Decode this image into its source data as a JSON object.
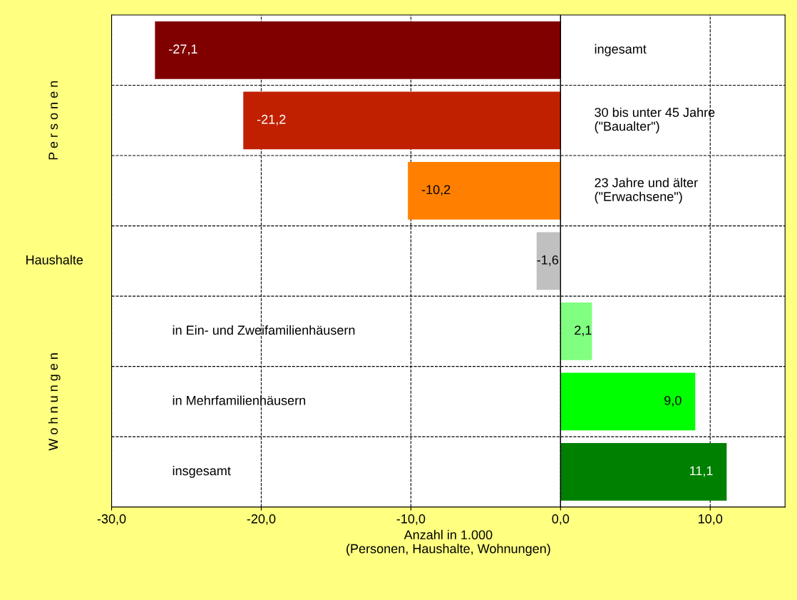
{
  "chart_data": {
    "type": "bar",
    "orientation": "horizontal",
    "categories": [
      "ingesamt",
      "30 bis unter 45 Jahre\n(\"Baualter\")",
      "23 Jahre und älter\n(\"Erwachsene\")",
      null,
      "in Ein- und Zweifamilienhäusern",
      "in Mehrfamilienhäusern",
      "insgesamt"
    ],
    "values": [
      -27.1,
      -21.2,
      -10.2,
      -1.6,
      2.1,
      9.0,
      11.1
    ],
    "colors": [
      "#800000",
      "#c02000",
      "#ff8000",
      "#c0c0c0",
      "#80ff80",
      "#00ff00",
      "#008000"
    ],
    "value_labels": [
      "-27,1",
      "-21,2",
      "-10,2",
      "-1,6",
      "2,1",
      "9,0",
      "11,1"
    ],
    "xlim": [
      -30,
      15
    ],
    "xticks": [
      {
        "value": -30,
        "label": "-30,0"
      },
      {
        "value": -20,
        "label": "-20,0"
      },
      {
        "value": -10,
        "label": "-10,0"
      },
      {
        "value": 0,
        "label": "0,0"
      },
      {
        "value": 10,
        "label": "10,0"
      }
    ],
    "xlabel": "Anzahl in 1.000\n(Personen, Haushalte, Wohnungen)",
    "annotations": [
      "P e r s o n e n",
      "Haushalte",
      "W o h n u n g e n"
    ],
    "ref_lines": [
      {
        "axis": "x",
        "value": 0,
        "color": "#000000"
      }
    ],
    "grid": true
  }
}
